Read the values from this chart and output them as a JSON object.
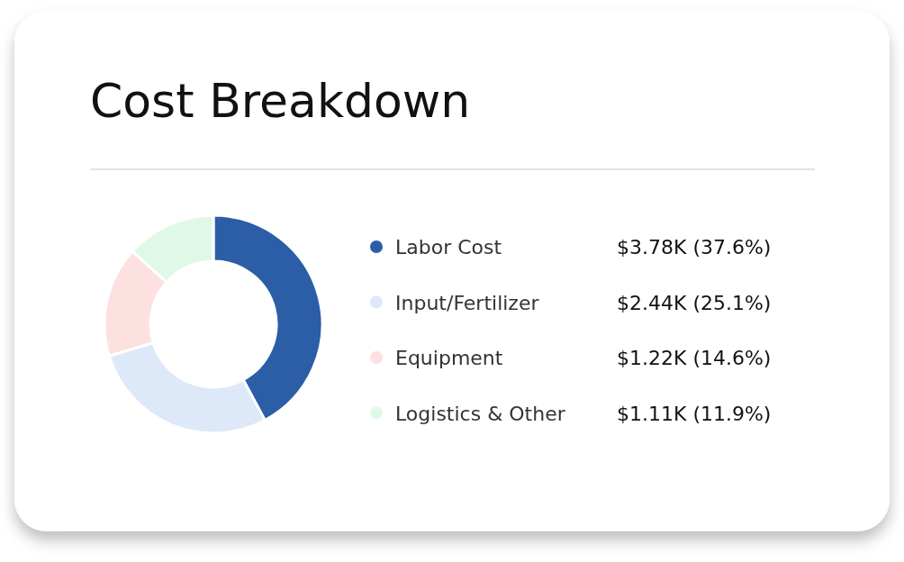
{
  "chart_data": {
    "type": "donut",
    "title": "Cost Breakdown",
    "categories": [
      "Labor Cost",
      "Input/Fertilizer",
      "Equipment",
      "Logistics & Other"
    ],
    "values": [
      37.6,
      25.1,
      14.6,
      11.9
    ],
    "value_labels": [
      "$3.78K (37.6%)",
      "$2.44K (25.1%)",
      "$1.22K (14.6%)",
      "$1.11K (11.9%)"
    ],
    "colors": [
      "#2b5ea7",
      "#dde9f8",
      "#fde0e0",
      "#e0f8e8"
    ],
    "legend": "right"
  }
}
